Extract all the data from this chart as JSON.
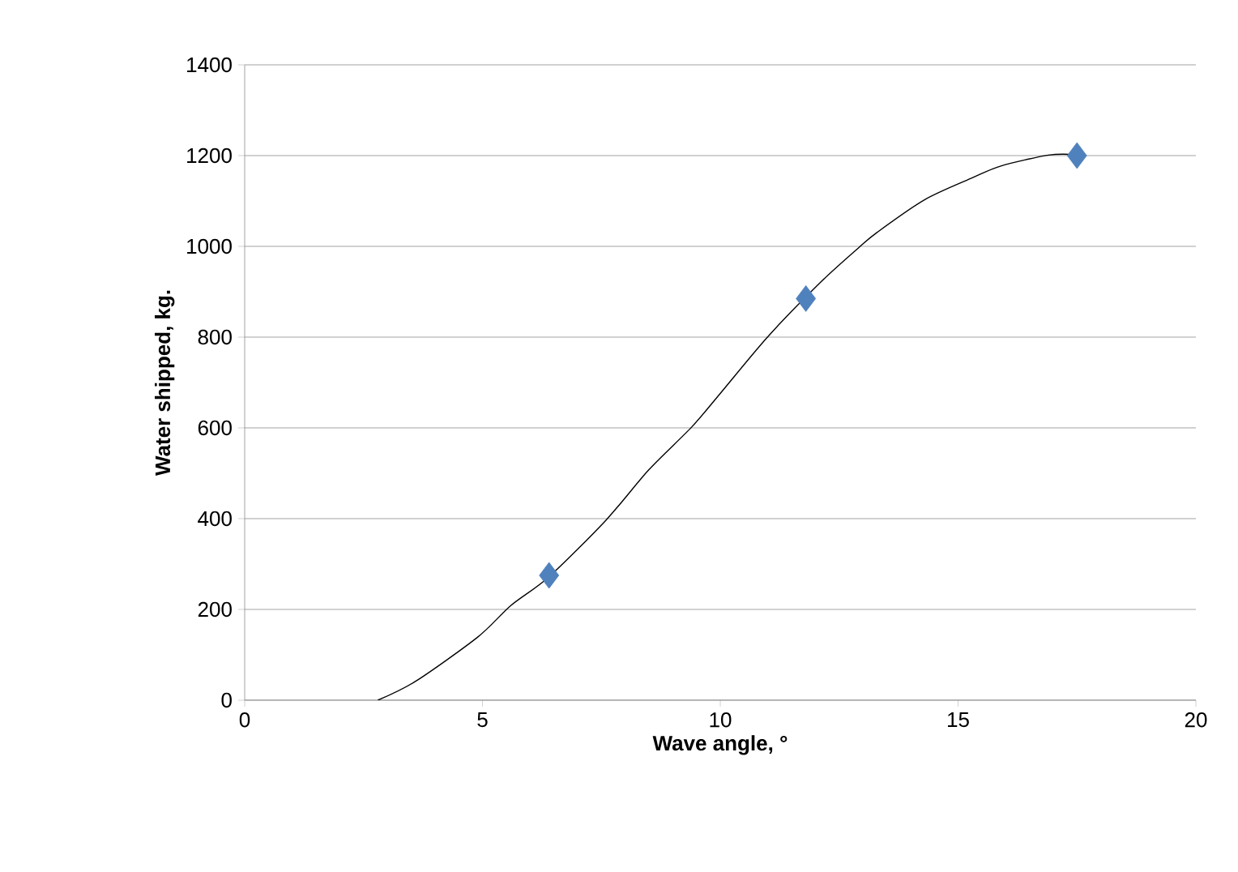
{
  "chart_data": {
    "type": "scatter",
    "xlabel": "Wave angle, °",
    "ylabel": "Water shipped, kg.",
    "xlim": [
      0,
      20
    ],
    "xticks": [
      0,
      5,
      10,
      15,
      20
    ],
    "ylim": [
      0,
      1400
    ],
    "yticks": [
      0,
      200,
      400,
      600,
      800,
      1000,
      1200,
      1400
    ],
    "grid": "y",
    "series": [
      {
        "color": "#4f81bd",
        "marker": "diamond",
        "x": [
          6.4,
          11.8,
          17.5
        ],
        "values": [
          275,
          885,
          1200
        ]
      },
      {
        "type": "line",
        "color": "#000000",
        "marker": "none",
        "x": [
          2.8,
          3.6,
          4.9,
          5.6,
          6.4,
          7.6,
          8.5,
          9.4,
          10.0,
          11.0,
          12.1,
          12.9,
          13.3,
          14.3,
          15.3,
          15.9,
          16.9,
          17.5
        ],
        "values": [
          0,
          42,
          139,
          209,
          272,
          397,
          508,
          602,
          676,
          801,
          920,
          996,
          1031,
          1103,
          1151,
          1177,
          1201,
          1202
        ]
      }
    ]
  }
}
